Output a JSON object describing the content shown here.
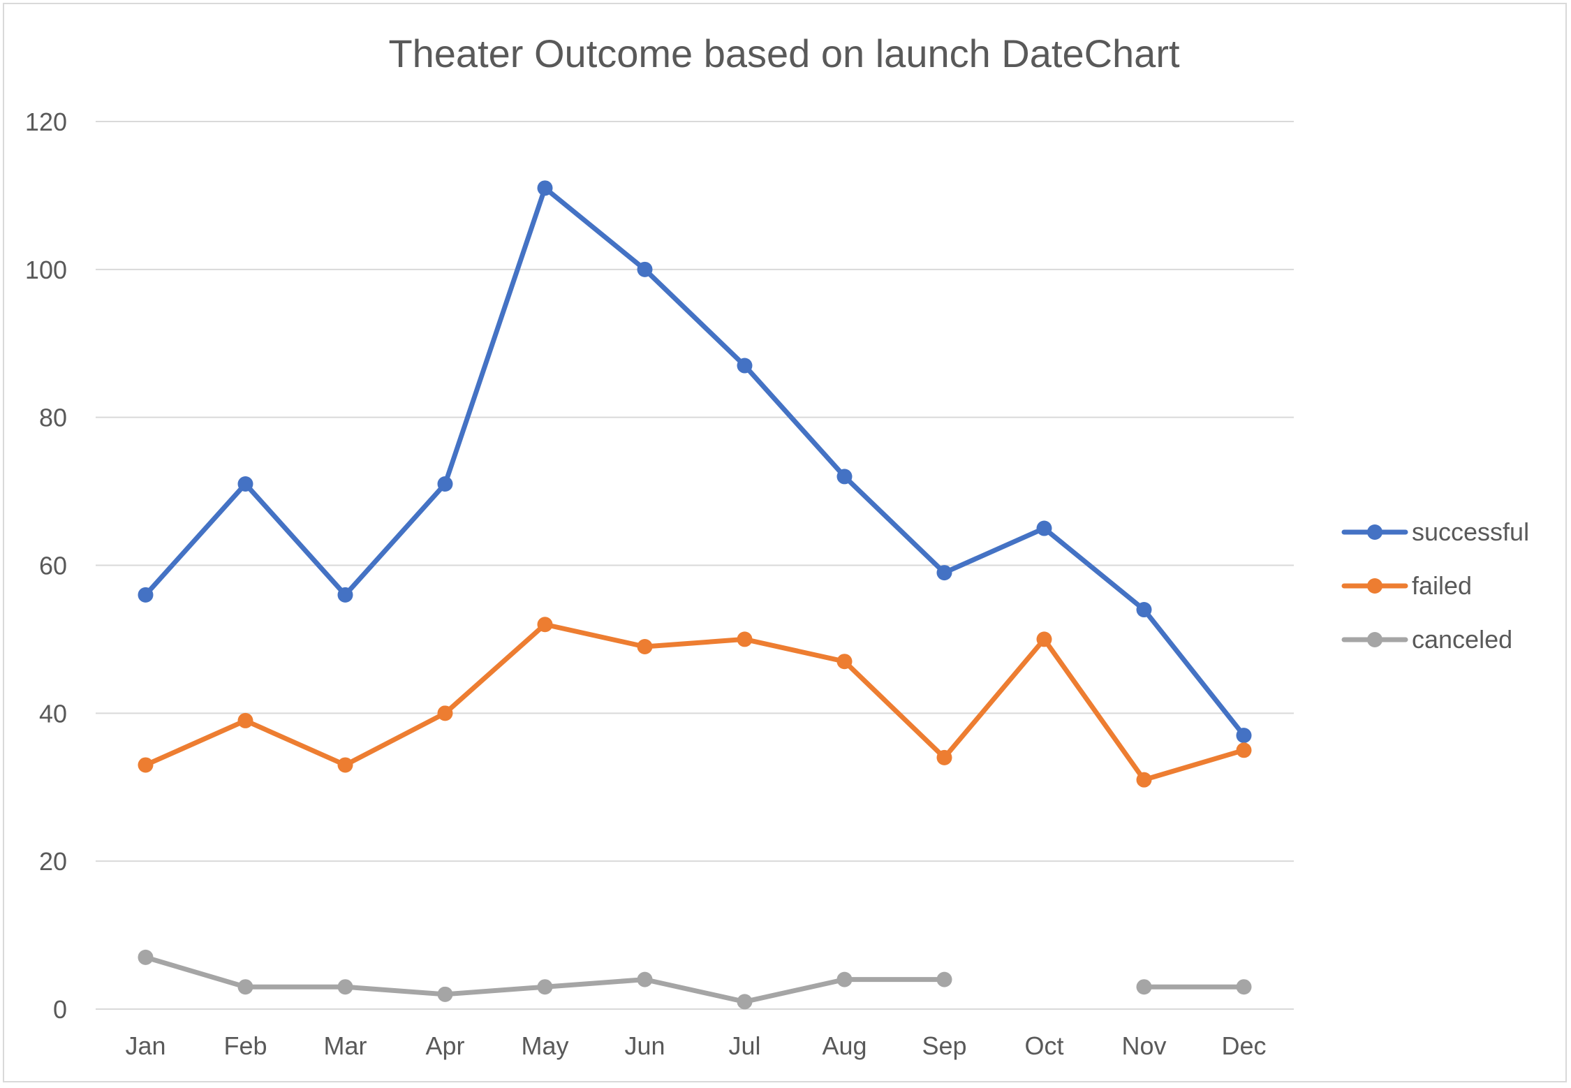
{
  "chart_data": {
    "type": "line",
    "title": "Theater Outcome based on launch DateChart",
    "xlabel": "",
    "ylabel": "",
    "categories": [
      "Jan",
      "Feb",
      "Mar",
      "Apr",
      "May",
      "Jun",
      "Jul",
      "Aug",
      "Sep",
      "Oct",
      "Nov",
      "Dec"
    ],
    "ylim": [
      0,
      120
    ],
    "yticks": [
      0,
      20,
      40,
      60,
      80,
      100,
      120
    ],
    "grid": true,
    "legend": "right",
    "series": [
      {
        "name": "successful",
        "color": "#4472c4",
        "values": [
          56,
          71,
          56,
          71,
          111,
          100,
          87,
          72,
          59,
          65,
          54,
          37
        ]
      },
      {
        "name": "failed",
        "color": "#ed7d31",
        "values": [
          33,
          39,
          33,
          40,
          52,
          49,
          50,
          47,
          34,
          50,
          31,
          35
        ]
      },
      {
        "name": "canceled",
        "color": "#a5a5a5",
        "values": [
          7,
          3,
          3,
          2,
          3,
          4,
          1,
          4,
          4,
          null,
          3,
          3
        ]
      }
    ]
  }
}
